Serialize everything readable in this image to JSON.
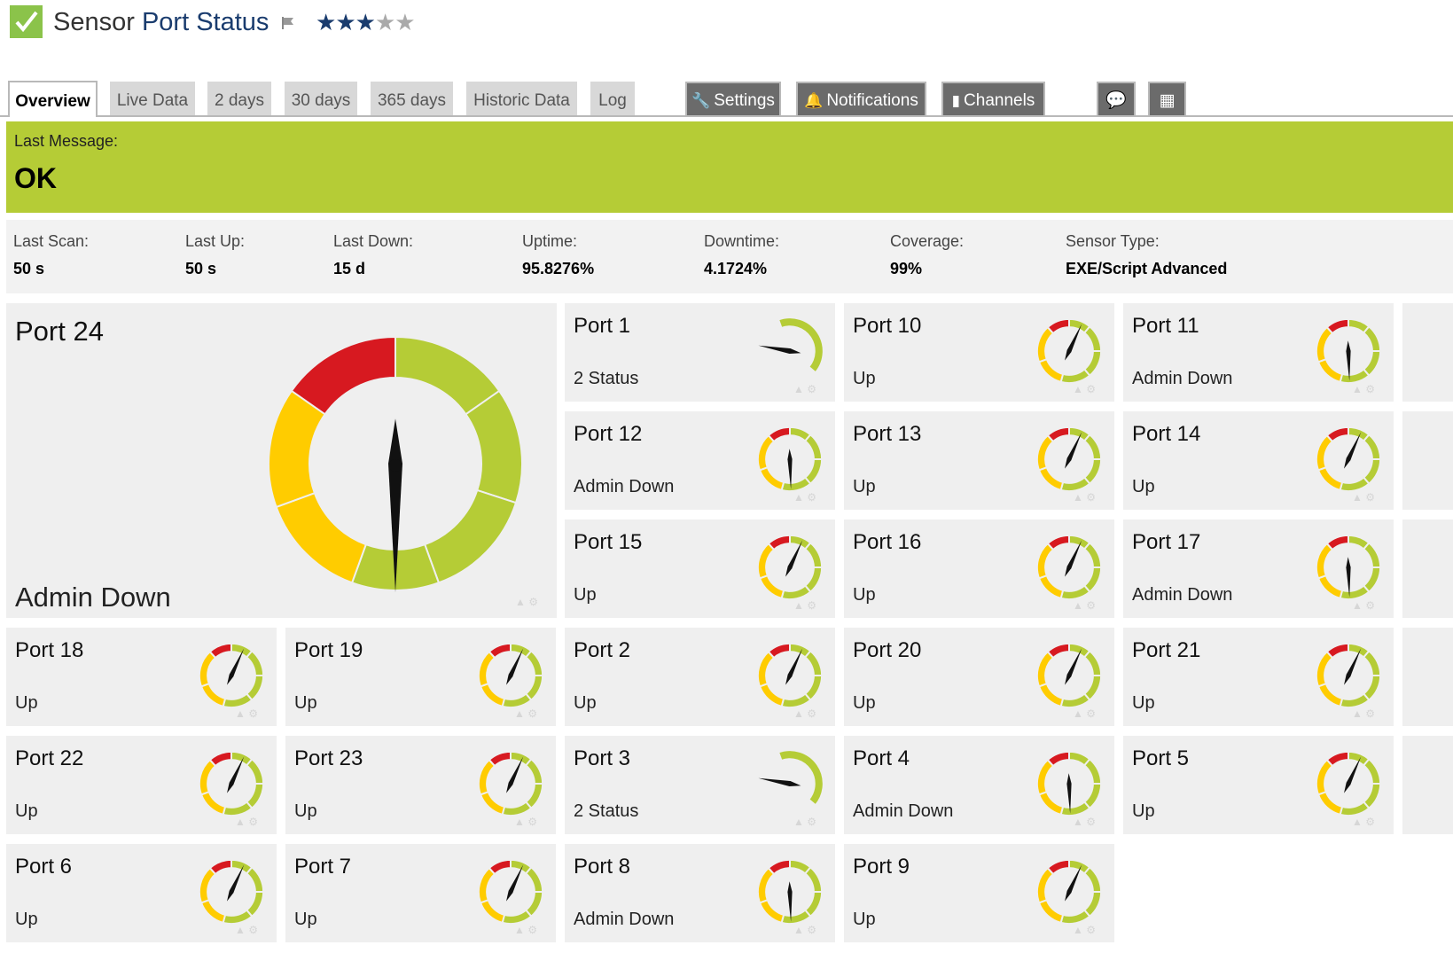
{
  "header": {
    "title_prefix": "Sensor",
    "title_name": "Port Status",
    "rating": 3,
    "rating_max": 5
  },
  "tabs": [
    "Overview",
    "Live Data",
    "2 days",
    "30 days",
    "365 days",
    "Historic Data",
    "Log"
  ],
  "actions": [
    "Settings",
    "Notifications",
    "Channels"
  ],
  "message": {
    "label": "Last Message:",
    "value": "OK"
  },
  "stats": [
    {
      "label": "Last Scan:",
      "value": "50 s"
    },
    {
      "label": "Last Up:",
      "value": "50 s"
    },
    {
      "label": "Last Down:",
      "value": "15 d"
    },
    {
      "label": "Uptime:",
      "value": "95.8276%"
    },
    {
      "label": "Downtime:",
      "value": "4.1724%"
    },
    {
      "label": "Coverage:",
      "value": "99%"
    },
    {
      "label": "Sensor Type:",
      "value": "EXE/Script Advanced"
    }
  ],
  "colors": {
    "ok": "#b5cc36",
    "warning": "#ffcc00",
    "error": "#d71920",
    "brand": "#1a3c6e"
  },
  "primary": {
    "name": "Port 24",
    "status": "Admin Down",
    "gauge": "ring"
  },
  "tiles": [
    {
      "name": "Port 1",
      "status": "2 Status",
      "gauge": "arc"
    },
    {
      "name": "Port 10",
      "status": "Up",
      "gauge": "ring"
    },
    {
      "name": "Port 11",
      "status": "Admin Down",
      "gauge": "ring"
    },
    {
      "name": "Port 12",
      "status": "Admin Down",
      "gauge": "ring"
    },
    {
      "name": "Port 13",
      "status": "Up",
      "gauge": "ring"
    },
    {
      "name": "Port 14",
      "status": "Up",
      "gauge": "ring"
    },
    {
      "name": "Port 15",
      "status": "Up",
      "gauge": "ring"
    },
    {
      "name": "Port 16",
      "status": "Up",
      "gauge": "ring"
    },
    {
      "name": "Port 17",
      "status": "Admin Down",
      "gauge": "ring"
    },
    {
      "name": "Port 18",
      "status": "Up",
      "gauge": "ring"
    },
    {
      "name": "Port 19",
      "status": "Up",
      "gauge": "ring"
    },
    {
      "name": "Port 2",
      "status": "Up",
      "gauge": "ring"
    },
    {
      "name": "Port 20",
      "status": "Up",
      "gauge": "ring"
    },
    {
      "name": "Port 21",
      "status": "Up",
      "gauge": "ring"
    },
    {
      "name": "Port 22",
      "status": "Up",
      "gauge": "ring"
    },
    {
      "name": "Port 23",
      "status": "Up",
      "gauge": "ring"
    },
    {
      "name": "Port 3",
      "status": "2 Status",
      "gauge": "arc"
    },
    {
      "name": "Port 4",
      "status": "Admin Down",
      "gauge": "ring"
    },
    {
      "name": "Port 5",
      "status": "Up",
      "gauge": "ring"
    },
    {
      "name": "Port 6",
      "status": "Up",
      "gauge": "ring"
    },
    {
      "name": "Port 7",
      "status": "Up",
      "gauge": "ring"
    },
    {
      "name": "Port 8",
      "status": "Admin Down",
      "gauge": "ring"
    },
    {
      "name": "Port 9",
      "status": "Up",
      "gauge": "ring"
    }
  ]
}
